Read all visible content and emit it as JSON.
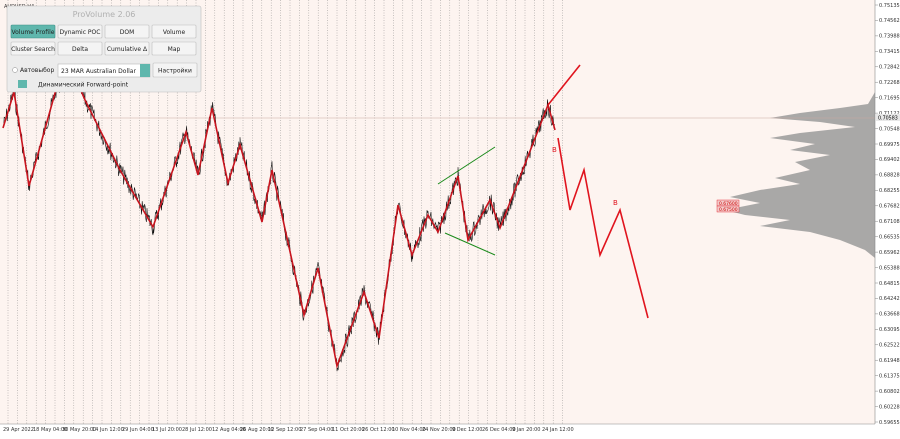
{
  "symbol": "AUDUSD,H4",
  "panel": {
    "title": "ProVolume 2.06",
    "buttons": [
      "Volume Profile",
      "Dynamic POC",
      "DOM",
      "Volume",
      "Cluster Search",
      "Delta",
      "Cumulative Δ",
      "Map"
    ],
    "auto_select": "Автовыбор",
    "instrument": "23 MAR Australian Dollar",
    "settings": "Настройки",
    "forward_point": "Динамический Forward-point"
  },
  "price_axis": [
    "0.75135",
    "0.74562",
    "0.73988",
    "0.73415",
    "0.72842",
    "0.72268",
    "0.71695",
    "0.71122",
    "0.70548",
    "0.69975",
    "0.69402",
    "0.68828",
    "0.68255",
    "0.67682",
    "0.67108",
    "0.66535",
    "0.65962",
    "0.65388",
    "0.64815",
    "0.64242",
    "0.63668",
    "0.63095",
    "0.62522",
    "0.61948",
    "0.61375",
    "0.60802",
    "0.60228",
    "0.59655"
  ],
  "current_price": "0.70583",
  "level_labels": [
    "0.67600",
    "0.67500"
  ],
  "markers": [
    "B",
    "B"
  ],
  "time_axis": [
    "29 Apr 2022",
    "18 May 04:00",
    "30 May 20:00",
    "14 Jun 12:00",
    "29 Jun 04:00",
    "13 Jul 20:00",
    "28 Jul 12:00",
    "12 Aug 04:00",
    "26 Aug 20:00",
    "12 Sep 12:00",
    "27 Sep 04:00",
    "11 Oct 20:00",
    "26 Oct 12:00",
    "10 Nov 04:00",
    "24 Nov 20:00",
    "9 Dec 12:00",
    "26 Dec 04:00",
    "9 Jan 20:00",
    "24 Jan 12:00"
  ]
}
